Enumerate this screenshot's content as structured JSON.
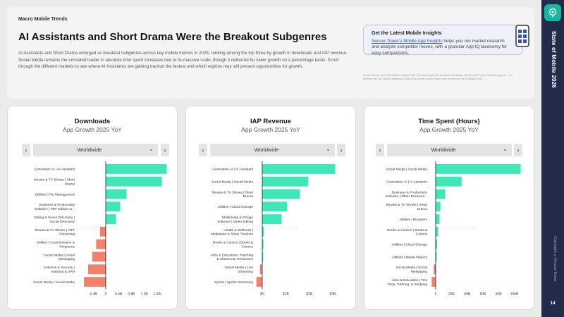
{
  "header": {
    "kicker": "Macro Mobile Trends",
    "title": "AI Assistants and Short Drama Were the Breakout Subgenres",
    "description": "AI Assistants and Short Drama emerged as breakout subgenres across key mobile metrics in 2025, ranking among the top three by growth in downloads and IAP revenue. Social Media remains the unrivaled leader in absolute time spent increases due to its massive scale, though it delivered far lower growth on a percentage basis. Scroll through the different markets to see where AI Assistants are gaining traction the fastest and which regions may still present opportunities for growth."
  },
  "cta": {
    "title": "Get the Latest Mobile Insights",
    "link_text": "Sensor Tower's Mobile App Insights",
    "body_text": " helps you run market research and analyze competitor moves, with a granular App IQ taxonomy for easy comparisons.",
    "icon": "phone-grid-icon"
  },
  "source_note": "Source: Sensor Tower RDO/Mobile Insights. Note: iOS and Google Play combined. Worldwide, not China (iOS only). Revenue is gross — net revenue only. App Data for subgenres in App IQ taxonomy. Sensor Tower's App IQ taxonomy as of January 2026.",
  "rail": {
    "title": "State of Mobile 2026",
    "copyright": "Copyright ©Sensor Tower",
    "page": "14",
    "logo_icon": "sensor-tower-logo-icon"
  },
  "watermark": "Sensor Tower",
  "colors": {
    "positive": "#3ee6b8",
    "negative": "#f3806c",
    "rail": "#232b4a",
    "accent": "#14b89f"
  },
  "charts": [
    {
      "title": "Downloads",
      "subtitle": "App Growth 2025 YoY",
      "region": "Worldwide",
      "prev_label": "‹",
      "next_label": "›"
    },
    {
      "title": "IAP Revenue",
      "subtitle": "App Growth 2025 YoY",
      "region": "Worldwide",
      "prev_label": "‹",
      "next_label": "›"
    },
    {
      "title": "Time Spent (Hours)",
      "subtitle": "App Growth 2025 YoY",
      "region": "Worldwide",
      "prev_label": "‹",
      "next_label": "›"
    }
  ],
  "chart_data": [
    {
      "type": "bar",
      "orientation": "horizontal",
      "title": "Downloads",
      "subtitle": "App Growth 2025 YoY",
      "categories": [
        [
          "Generative AI | AI Assistant"
        ],
        [
          "Movies & TV Shows | Short",
          "Drama"
        ],
        [
          "Utilities | File Management"
        ],
        [
          "Business & Productivity",
          "Software | PDF Editors &..."
        ],
        [
          "Dating & Social Discovery |",
          "Social Discovery"
        ],
        [
          "Movies & TV Shows | OTT",
          "Streaming"
        ],
        [
          "Utilities | Customization &",
          "Ringtones"
        ],
        [
          "Social Media | Social",
          "Messaging"
        ],
        [
          "Antivirus & Security |",
          "Antivirus & VPN"
        ],
        [
          "Social Media | Social Media"
        ]
      ],
      "values": [
        1.9,
        1.75,
        0.65,
        0.45,
        0.32,
        -0.18,
        -0.3,
        -0.42,
        -0.55,
        -0.68
      ],
      "xlim": [
        -0.9,
        2.0
      ],
      "ticks": [
        -0.4,
        0,
        0.4,
        0.8,
        1.2,
        1.6
      ],
      "tick_labels": [
        "-0.4B",
        "0",
        "0.4B",
        "0.8B",
        "1.2B",
        "1.6B"
      ]
    },
    {
      "type": "bar",
      "orientation": "horizontal",
      "title": "IAP Revenue",
      "subtitle": "App Growth 2025 YoY",
      "categories": [
        [
          "Generative AI | AI Assistant"
        ],
        [
          "Social Media | Social Media"
        ],
        [
          "Movies & TV Shows | Short",
          "Drama"
        ],
        [
          "Utilities | Cloud Storage"
        ],
        [
          "Multimedia & Design",
          "Software | Video Editing"
        ],
        [
          "Health & Wellness |",
          "Meditation & Sleep Trackers"
        ],
        [
          "Books & Comics | Books &",
          "Comics"
        ],
        [
          "Jobs & Education | Teaching",
          "& Classroom Resources"
        ],
        [
          "Social Media | Live",
          "Streaming"
        ],
        [
          "Sports | Sports Streaming"
        ]
      ],
      "values": [
        3.1,
        1.95,
        1.6,
        1.05,
        0.82,
        0.07,
        0.05,
        0.04,
        -0.1,
        -0.25
      ],
      "xlim": [
        -0.3,
        3.3
      ],
      "ticks": [
        0,
        1,
        2,
        3
      ],
      "tick_labels": [
        "$0",
        "$1B",
        "$2B",
        "$3B"
      ]
    },
    {
      "type": "bar",
      "orientation": "horizontal",
      "title": "Time Spent (Hours)",
      "subtitle": "App Growth 2025 YoY",
      "categories": [
        [
          "Social Media | Social Media"
        ],
        [
          "Generative AI | AI Assistant"
        ],
        [
          "Business & Productivity",
          "Software | Other Business..."
        ],
        [
          "Movies & TV Shows | Short",
          "Drama"
        ],
        [
          "Utilities | Browsers"
        ],
        [
          "Books & Comics | Books &",
          "Comics"
        ],
        [
          "Utilities | Cloud Storage"
        ],
        [
          "Utilities | Media Players"
        ],
        [
          "Social Media | Social",
          "Messaging"
        ],
        [
          "Jobs & Education | Test",
          "Prep, Tutoring, & Studying"
        ]
      ],
      "values": [
        108,
        33,
        12,
        6,
        5,
        3,
        2,
        1.5,
        -2.5,
        -5
      ],
      "xlim": [
        -8,
        112
      ],
      "ticks": [
        0,
        20,
        40,
        60,
        80,
        100
      ],
      "tick_labels": [
        "0",
        "20B",
        "40B",
        "60B",
        "80B",
        "100B"
      ]
    }
  ]
}
